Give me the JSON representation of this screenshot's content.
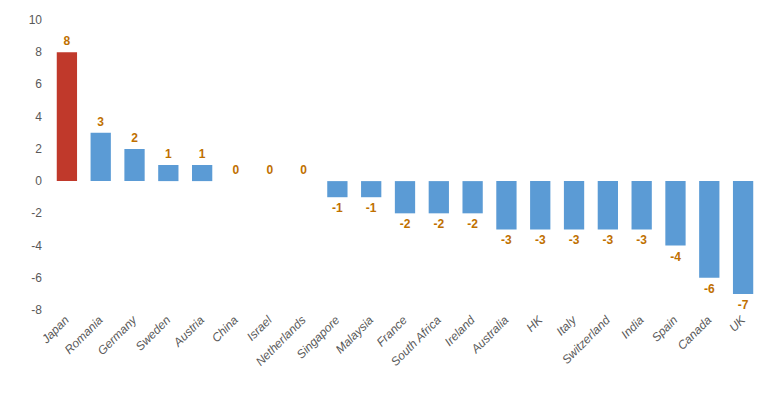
{
  "chart_data": {
    "type": "bar",
    "categories": [
      "Japan",
      "Romania",
      "Germany",
      "Sweden",
      "Austria",
      "China",
      "Israel",
      "Netherlands",
      "Singapore",
      "Malaysia",
      "France",
      "South Africa",
      "Ireland",
      "Australia",
      "HK",
      "Italy",
      "Switzerland",
      "India",
      "Spain",
      "Canada",
      "UK"
    ],
    "values": [
      8,
      3,
      2,
      1,
      1,
      0,
      0,
      0,
      -1,
      -1,
      -2,
      -2,
      -2,
      -3,
      -3,
      -3,
      -3,
      -3,
      -4,
      -6,
      -7
    ],
    "colors": [
      "#c0392b",
      "#5b9bd5",
      "#5b9bd5",
      "#5b9bd5",
      "#5b9bd5",
      "#5b9bd5",
      "#5b9bd5",
      "#5b9bd5",
      "#5b9bd5",
      "#5b9bd5",
      "#5b9bd5",
      "#5b9bd5",
      "#5b9bd5",
      "#5b9bd5",
      "#5b9bd5",
      "#5b9bd5",
      "#5b9bd5",
      "#5b9bd5",
      "#5b9bd5",
      "#5b9bd5",
      "#5b9bd5"
    ],
    "ylim": [
      -8,
      10
    ],
    "yticks": [
      -8,
      -6,
      -4,
      -2,
      0,
      2,
      4,
      6,
      8,
      10
    ],
    "grid": false,
    "data_labels": true
  }
}
